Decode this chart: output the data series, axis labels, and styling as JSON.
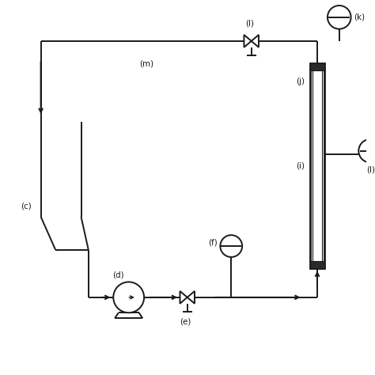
{
  "bg_color": "#ffffff",
  "line_color": "#1a1a1a",
  "labels": {
    "c": "(c)",
    "d": "(d)",
    "e": "(e)",
    "f": "(f)",
    "i": "(i)",
    "j": "(j)",
    "k": "(k)",
    "l": "(l)",
    "m": "(m)",
    "valve_top": "(l)"
  },
  "figsize": [
    4.74,
    4.74
  ],
  "dpi": 100
}
